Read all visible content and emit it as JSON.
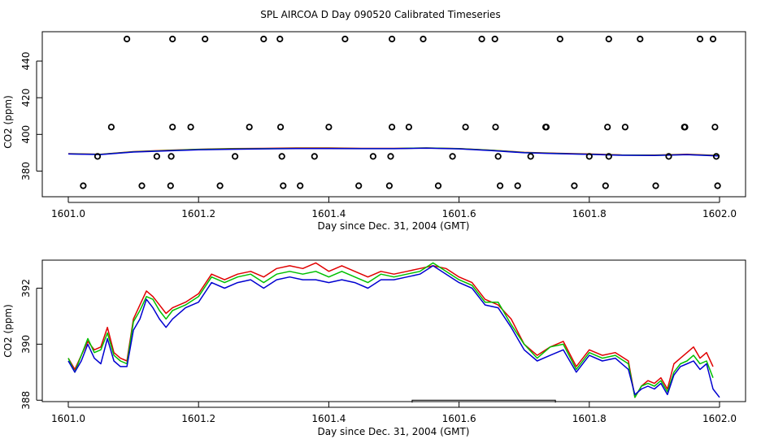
{
  "title": "SPL AIRCOA D  Day 090520  Calibrated Timeseries",
  "colors": {
    "red": "#e00000",
    "green": "#00c000",
    "blue": "#0000d0",
    "magenta": "#c000c0",
    "black": "#000000"
  },
  "chart_data": [
    {
      "type": "scatter",
      "xlabel": "Day since Dec. 31, 2004 (GMT)",
      "ylabel": "CO2 (ppm)",
      "xlim": [
        1601.0,
        1602.0
      ],
      "ylim": [
        366,
        456
      ],
      "xticks": [
        "1601.0",
        "1601.2",
        "1601.4",
        "1601.6",
        "1601.8",
        "1602.0"
      ],
      "yticks": [
        "380",
        "400",
        "420",
        "440"
      ],
      "ytick_values": [
        380,
        400,
        420,
        440
      ],
      "grid": false,
      "points": {
        "top": {
          "y": 452,
          "x": [
            1601.09,
            1601.16,
            1601.21,
            1601.3,
            1601.325,
            1601.425,
            1601.497,
            1601.545,
            1601.635,
            1601.655,
            1601.755,
            1601.83,
            1601.878,
            1601.97,
            1601.99
          ]
        },
        "mid": {
          "y": 404,
          "x": [
            1601.066,
            1601.16,
            1601.188,
            1601.278,
            1601.326,
            1601.4,
            1601.497,
            1601.523,
            1601.61,
            1601.656,
            1601.733,
            1601.734,
            1601.828,
            1601.855,
            1601.946,
            1601.947,
            1601.993
          ]
        },
        "low": {
          "y": 388,
          "x": [
            1601.045,
            1601.136,
            1601.158,
            1601.256,
            1601.328,
            1601.378,
            1601.468,
            1601.495,
            1601.59,
            1601.66,
            1601.71,
            1601.8,
            1601.83,
            1601.922,
            1601.995
          ]
        },
        "bottom": {
          "y": 372,
          "x": [
            1601.023,
            1601.113,
            1601.157,
            1601.233,
            1601.33,
            1601.356,
            1601.446,
            1601.493,
            1601.568,
            1601.663,
            1601.69,
            1601.777,
            1601.825,
            1601.902,
            1601.997
          ]
        }
      },
      "series": [
        {
          "color": "#e00000",
          "x": [
            1601.0,
            1601.05,
            1601.1,
            1601.15,
            1601.2,
            1601.25,
            1601.3,
            1601.35,
            1601.4,
            1601.45,
            1601.5,
            1601.55,
            1601.6,
            1601.65,
            1601.7,
            1601.75,
            1601.8,
            1601.85,
            1601.9,
            1601.95,
            1602.0
          ],
          "y": [
            389.5,
            389.2,
            390.6,
            391.3,
            391.9,
            392.3,
            392.4,
            392.6,
            392.6,
            392.4,
            392.4,
            392.6,
            392.3,
            391.4,
            390.2,
            389.7,
            389.3,
            388.8,
            388.7,
            389.2,
            388.5
          ]
        },
        {
          "color": "#00c000",
          "x": [
            1601.0,
            1601.05,
            1601.1,
            1601.15,
            1601.2,
            1601.25,
            1601.3,
            1601.35,
            1601.4,
            1601.45,
            1601.5,
            1601.55,
            1601.6,
            1601.65,
            1601.7,
            1601.75,
            1601.8,
            1601.85,
            1601.9,
            1601.95,
            1602.0
          ],
          "y": [
            389.4,
            389.1,
            390.5,
            391.2,
            391.8,
            392.1,
            392.2,
            392.4,
            392.4,
            392.3,
            392.3,
            392.6,
            392.2,
            391.3,
            390.1,
            389.6,
            389.2,
            388.7,
            388.6,
            389.0,
            388.4
          ]
        },
        {
          "color": "#0000d0",
          "x": [
            1601.0,
            1601.05,
            1601.1,
            1601.15,
            1601.2,
            1601.25,
            1601.3,
            1601.35,
            1601.4,
            1601.45,
            1601.5,
            1601.55,
            1601.6,
            1601.65,
            1601.7,
            1601.75,
            1601.8,
            1601.85,
            1601.9,
            1601.95,
            1602.0
          ],
          "y": [
            389.3,
            389.0,
            390.4,
            391.0,
            391.6,
            391.9,
            392.1,
            392.3,
            392.3,
            392.2,
            392.2,
            392.5,
            392.1,
            391.2,
            390.0,
            389.5,
            389.1,
            388.6,
            388.5,
            388.9,
            388.2
          ]
        }
      ]
    },
    {
      "type": "line",
      "xlabel": "Day since Dec. 31, 2004 (GMT)",
      "ylabel": "CO2 (ppm)",
      "xlim": [
        1601.0,
        1602.0
      ],
      "ylim": [
        387.95,
        393.0
      ],
      "xticks": [
        "1601.0",
        "1601.2",
        "1601.4",
        "1601.6",
        "1601.8",
        "1602.0"
      ],
      "yticks": [
        "388",
        "390",
        "392"
      ],
      "ytick_values": [
        388,
        390,
        392
      ],
      "grid": false,
      "bracket": {
        "x": [
          1601.528,
          1601.748
        ],
        "y": 388.0
      },
      "series": [
        {
          "color": "#e00000",
          "x": [
            1601.0,
            1601.01,
            1601.02,
            1601.03,
            1601.04,
            1601.05,
            1601.06,
            1601.07,
            1601.08,
            1601.09,
            1601.1,
            1601.11,
            1601.12,
            1601.13,
            1601.14,
            1601.15,
            1601.16,
            1601.18,
            1601.2,
            1601.22,
            1601.24,
            1601.26,
            1601.28,
            1601.3,
            1601.32,
            1601.34,
            1601.36,
            1601.38,
            1601.4,
            1601.42,
            1601.44,
            1601.46,
            1601.48,
            1601.5,
            1601.52,
            1601.54,
            1601.56,
            1601.58,
            1601.6,
            1601.62,
            1601.64,
            1601.66,
            1601.68,
            1601.7,
            1601.72,
            1601.74,
            1601.76,
            1601.78,
            1601.8,
            1601.82,
            1601.84,
            1601.86,
            1601.87,
            1601.88,
            1601.89,
            1601.9,
            1601.91,
            1601.92,
            1601.93,
            1601.94,
            1601.95,
            1601.96,
            1601.97,
            1601.98,
            1601.99
          ],
          "y": [
            389.5,
            389.1,
            389.6,
            390.1,
            389.8,
            389.9,
            390.6,
            389.7,
            389.5,
            389.4,
            390.9,
            391.4,
            391.9,
            391.7,
            391.4,
            391.1,
            391.3,
            391.5,
            391.8,
            392.5,
            392.3,
            392.5,
            392.6,
            392.4,
            392.7,
            392.8,
            392.7,
            392.9,
            392.6,
            392.8,
            392.6,
            392.4,
            392.6,
            392.5,
            392.6,
            392.7,
            392.8,
            392.7,
            392.4,
            392.2,
            391.6,
            391.4,
            390.9,
            390.0,
            389.6,
            389.9,
            390.1,
            389.2,
            389.8,
            389.6,
            389.7,
            389.4,
            388.1,
            388.5,
            388.7,
            388.6,
            388.8,
            388.4,
            389.3,
            389.5,
            389.7,
            389.9,
            389.5,
            389.7,
            389.2
          ]
        },
        {
          "color": "#00c000",
          "x": [
            1601.0,
            1601.01,
            1601.02,
            1601.03,
            1601.04,
            1601.05,
            1601.06,
            1601.07,
            1601.08,
            1601.09,
            1601.1,
            1601.11,
            1601.12,
            1601.13,
            1601.14,
            1601.15,
            1601.16,
            1601.18,
            1601.2,
            1601.22,
            1601.24,
            1601.26,
            1601.28,
            1601.3,
            1601.32,
            1601.34,
            1601.36,
            1601.38,
            1601.4,
            1601.42,
            1601.44,
            1601.46,
            1601.48,
            1601.5,
            1601.52,
            1601.54,
            1601.56,
            1601.58,
            1601.6,
            1601.62,
            1601.64,
            1601.66,
            1601.68,
            1601.7,
            1601.72,
            1601.74,
            1601.76,
            1601.78,
            1601.8,
            1601.82,
            1601.84,
            1601.86,
            1601.87,
            1601.88,
            1601.89,
            1601.9,
            1601.91,
            1601.92,
            1601.93,
            1601.94,
            1601.95,
            1601.96,
            1601.97,
            1601.98,
            1601.99
          ],
          "y": [
            389.5,
            389.0,
            389.6,
            390.2,
            389.7,
            389.8,
            390.4,
            389.6,
            389.4,
            389.3,
            390.8,
            391.2,
            391.7,
            391.6,
            391.2,
            390.9,
            391.2,
            391.4,
            391.7,
            392.4,
            392.2,
            392.4,
            392.5,
            392.2,
            392.5,
            392.6,
            392.5,
            392.6,
            392.4,
            392.6,
            392.4,
            392.2,
            392.5,
            392.4,
            392.5,
            392.6,
            392.9,
            392.6,
            392.3,
            392.1,
            391.5,
            391.5,
            390.7,
            390.0,
            389.5,
            389.9,
            390.0,
            389.1,
            389.7,
            389.5,
            389.6,
            389.3,
            388.1,
            388.5,
            388.6,
            388.5,
            388.7,
            388.3,
            389.0,
            389.3,
            389.4,
            389.6,
            389.3,
            389.4,
            388.8
          ]
        },
        {
          "color": "#0000d0",
          "x": [
            1601.0,
            1601.01,
            1601.02,
            1601.03,
            1601.04,
            1601.05,
            1601.06,
            1601.07,
            1601.08,
            1601.09,
            1601.1,
            1601.11,
            1601.12,
            1601.13,
            1601.14,
            1601.15,
            1601.16,
            1601.18,
            1601.2,
            1601.22,
            1601.24,
            1601.26,
            1601.28,
            1601.3,
            1601.32,
            1601.34,
            1601.36,
            1601.38,
            1601.4,
            1601.42,
            1601.44,
            1601.46,
            1601.48,
            1601.5,
            1601.52,
            1601.54,
            1601.56,
            1601.58,
            1601.6,
            1601.62,
            1601.64,
            1601.66,
            1601.68,
            1601.7,
            1601.72,
            1601.74,
            1601.76,
            1601.78,
            1601.8,
            1601.82,
            1601.84,
            1601.86,
            1601.87,
            1601.88,
            1601.89,
            1601.9,
            1601.91,
            1601.92,
            1601.93,
            1601.94,
            1601.95,
            1601.96,
            1601.97,
            1601.98,
            1601.99,
            1602.0
          ],
          "y": [
            389.4,
            389.0,
            389.4,
            390.0,
            389.5,
            389.3,
            390.2,
            389.4,
            389.2,
            389.2,
            390.5,
            390.9,
            391.6,
            391.3,
            390.9,
            390.6,
            390.9,
            391.3,
            391.5,
            392.2,
            392.0,
            392.2,
            392.3,
            392.0,
            392.3,
            392.4,
            392.3,
            392.3,
            392.2,
            392.3,
            392.2,
            392.0,
            392.3,
            392.3,
            392.4,
            392.5,
            392.8,
            392.5,
            392.2,
            392.0,
            391.4,
            391.3,
            390.6,
            389.8,
            389.4,
            389.6,
            389.8,
            389.0,
            389.6,
            389.4,
            389.5,
            389.1,
            388.2,
            388.4,
            388.5,
            388.4,
            388.6,
            388.2,
            388.9,
            389.2,
            389.3,
            389.4,
            389.1,
            389.3,
            388.4,
            388.1
          ]
        }
      ]
    }
  ]
}
